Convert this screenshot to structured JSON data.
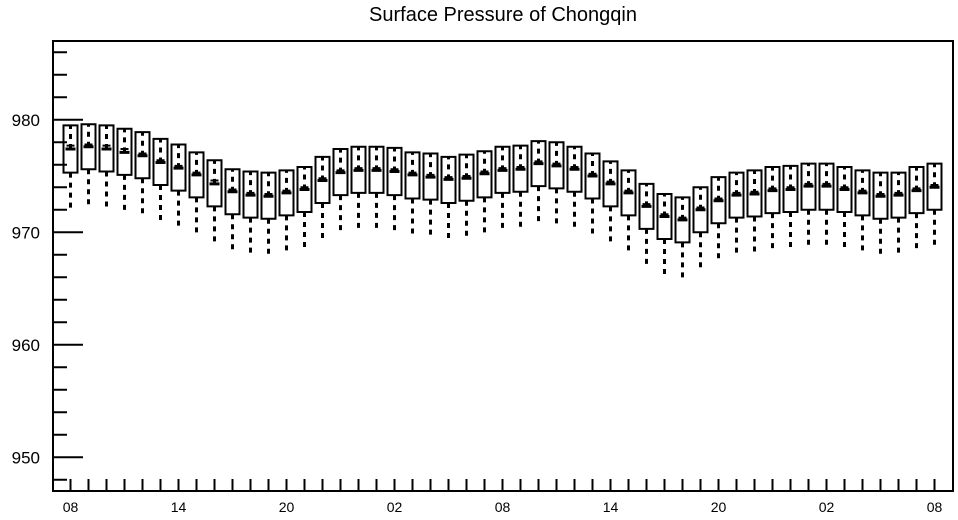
{
  "chart_data": {
    "type": "box",
    "title": "Surface Pressure of Chongqin",
    "xlabel": "",
    "ylabel": "",
    "ylim": [
      947,
      987
    ],
    "y_ticks": [
      950,
      960,
      970,
      980
    ],
    "x_ticks": [
      "08",
      "14",
      "20",
      "02",
      "08",
      "14",
      "20",
      "02",
      "08"
    ],
    "x_tick_positions": [
      0,
      6,
      12,
      18,
      24,
      30,
      36,
      42,
      48
    ],
    "grid": false,
    "boxes": [
      {
        "x": 0,
        "q1": 975.3,
        "median": 977.4,
        "q3": 979.5,
        "mean": 977.7,
        "whisker_low": 972.0
      },
      {
        "x": 1,
        "q1": 975.6,
        "median": 977.6,
        "q3": 979.6,
        "mean": 977.8,
        "whisker_low": 972.2
      },
      {
        "x": 2,
        "q1": 975.4,
        "median": 977.4,
        "q3": 979.5,
        "mean": 977.7,
        "whisker_low": 972.1
      },
      {
        "x": 3,
        "q1": 975.1,
        "median": 977.1,
        "q3": 979.2,
        "mean": 977.4,
        "whisker_low": 971.9
      },
      {
        "x": 4,
        "q1": 974.8,
        "median": 976.8,
        "q3": 978.9,
        "mean": 977.0,
        "whisker_low": 971.5
      },
      {
        "x": 5,
        "q1": 974.2,
        "median": 976.2,
        "q3": 978.3,
        "mean": 976.4,
        "whisker_low": 971.0
      },
      {
        "x": 6,
        "q1": 973.7,
        "median": 975.7,
        "q3": 977.8,
        "mean": 975.9,
        "whisker_low": 970.4
      },
      {
        "x": 7,
        "q1": 973.1,
        "median": 975.1,
        "q3": 977.1,
        "mean": 975.3,
        "whisker_low": 969.8
      },
      {
        "x": 8,
        "q1": 972.3,
        "median": 974.3,
        "q3": 976.4,
        "mean": 974.6,
        "whisker_low": 969.1
      },
      {
        "x": 9,
        "q1": 971.6,
        "median": 973.6,
        "q3": 975.6,
        "mean": 973.8,
        "whisker_low": 968.4
      },
      {
        "x": 10,
        "q1": 971.3,
        "median": 973.3,
        "q3": 975.4,
        "mean": 973.5,
        "whisker_low": 968.1
      },
      {
        "x": 11,
        "q1": 971.2,
        "median": 973.2,
        "q3": 975.3,
        "mean": 973.4,
        "whisker_low": 968.0
      },
      {
        "x": 12,
        "q1": 971.5,
        "median": 973.5,
        "q3": 975.5,
        "mean": 973.7,
        "whisker_low": 968.3
      },
      {
        "x": 13,
        "q1": 971.8,
        "median": 973.8,
        "q3": 975.8,
        "mean": 974.0,
        "whisker_low": 968.6
      },
      {
        "x": 14,
        "q1": 972.6,
        "median": 974.6,
        "q3": 976.7,
        "mean": 974.8,
        "whisker_low": 969.4
      },
      {
        "x": 15,
        "q1": 973.3,
        "median": 975.3,
        "q3": 977.4,
        "mean": 975.5,
        "whisker_low": 970.1
      },
      {
        "x": 16,
        "q1": 973.5,
        "median": 975.5,
        "q3": 977.6,
        "mean": 975.7,
        "whisker_low": 970.3
      },
      {
        "x": 17,
        "q1": 973.5,
        "median": 975.5,
        "q3": 977.6,
        "mean": 975.7,
        "whisker_low": 970.3
      },
      {
        "x": 18,
        "q1": 973.3,
        "median": 975.4,
        "q3": 977.5,
        "mean": 975.6,
        "whisker_low": 970.1
      },
      {
        "x": 19,
        "q1": 973.0,
        "median": 975.1,
        "q3": 977.1,
        "mean": 975.3,
        "whisker_low": 969.8
      },
      {
        "x": 20,
        "q1": 972.9,
        "median": 974.9,
        "q3": 977.0,
        "mean": 975.1,
        "whisker_low": 969.6
      },
      {
        "x": 21,
        "q1": 972.6,
        "median": 974.7,
        "q3": 976.7,
        "mean": 974.9,
        "whisker_low": 969.4
      },
      {
        "x": 22,
        "q1": 972.8,
        "median": 974.8,
        "q3": 976.9,
        "mean": 975.0,
        "whisker_low": 969.5
      },
      {
        "x": 23,
        "q1": 973.1,
        "median": 975.2,
        "q3": 977.2,
        "mean": 975.4,
        "whisker_low": 969.9
      },
      {
        "x": 24,
        "q1": 973.5,
        "median": 975.5,
        "q3": 977.6,
        "mean": 975.7,
        "whisker_low": 970.3
      },
      {
        "x": 25,
        "q1": 973.6,
        "median": 975.6,
        "q3": 977.7,
        "mean": 975.8,
        "whisker_low": 970.4
      },
      {
        "x": 26,
        "q1": 974.1,
        "median": 976.1,
        "q3": 978.1,
        "mean": 976.3,
        "whisker_low": 970.8
      },
      {
        "x": 27,
        "q1": 973.9,
        "median": 975.9,
        "q3": 978.0,
        "mean": 976.1,
        "whisker_low": 970.6
      },
      {
        "x": 28,
        "q1": 973.6,
        "median": 975.6,
        "q3": 977.6,
        "mean": 975.8,
        "whisker_low": 970.3
      },
      {
        "x": 29,
        "q1": 973.0,
        "median": 975.0,
        "q3": 977.0,
        "mean": 975.2,
        "whisker_low": 969.7
      },
      {
        "x": 30,
        "q1": 972.3,
        "median": 974.3,
        "q3": 976.3,
        "mean": 974.5,
        "whisker_low": 969.0
      },
      {
        "x": 31,
        "q1": 971.5,
        "median": 973.5,
        "q3": 975.5,
        "mean": 973.7,
        "whisker_low": 968.2
      },
      {
        "x": 32,
        "q1": 970.3,
        "median": 972.3,
        "q3": 974.3,
        "mean": 972.5,
        "whisker_low": 967.0
      },
      {
        "x": 33,
        "q1": 969.4,
        "median": 971.4,
        "q3": 973.4,
        "mean": 971.6,
        "whisker_low": 966.1
      },
      {
        "x": 34,
        "q1": 969.1,
        "median": 971.1,
        "q3": 973.1,
        "mean": 971.3,
        "whisker_low": 965.8
      },
      {
        "x": 35,
        "q1": 970.0,
        "median": 972.0,
        "q3": 974.0,
        "mean": 972.2,
        "whisker_low": 966.7
      },
      {
        "x": 36,
        "q1": 970.8,
        "median": 972.8,
        "q3": 974.9,
        "mean": 973.0,
        "whisker_low": 967.6
      },
      {
        "x": 37,
        "q1": 971.3,
        "median": 973.3,
        "q3": 975.3,
        "mean": 973.5,
        "whisker_low": 968.0
      },
      {
        "x": 38,
        "q1": 971.4,
        "median": 973.4,
        "q3": 975.5,
        "mean": 973.6,
        "whisker_low": 968.2
      },
      {
        "x": 39,
        "q1": 971.7,
        "median": 973.7,
        "q3": 975.8,
        "mean": 973.9,
        "whisker_low": 968.5
      },
      {
        "x": 40,
        "q1": 971.8,
        "median": 973.8,
        "q3": 975.9,
        "mean": 974.0,
        "whisker_low": 968.6
      },
      {
        "x": 41,
        "q1": 972.0,
        "median": 974.1,
        "q3": 976.1,
        "mean": 974.3,
        "whisker_low": 968.8
      },
      {
        "x": 42,
        "q1": 972.0,
        "median": 974.1,
        "q3": 976.1,
        "mean": 974.3,
        "whisker_low": 968.8
      },
      {
        "x": 43,
        "q1": 971.8,
        "median": 973.8,
        "q3": 975.8,
        "mean": 974.0,
        "whisker_low": 968.5
      },
      {
        "x": 44,
        "q1": 971.5,
        "median": 973.5,
        "q3": 975.5,
        "mean": 973.7,
        "whisker_low": 968.2
      },
      {
        "x": 45,
        "q1": 971.2,
        "median": 973.2,
        "q3": 975.3,
        "mean": 973.4,
        "whisker_low": 967.9
      },
      {
        "x": 46,
        "q1": 971.3,
        "median": 973.3,
        "q3": 975.3,
        "mean": 973.5,
        "whisker_low": 968.0
      },
      {
        "x": 47,
        "q1": 971.7,
        "median": 973.7,
        "q3": 975.8,
        "mean": 973.9,
        "whisker_low": 968.5
      },
      {
        "x": 48,
        "q1": 972.0,
        "median": 974.0,
        "q3": 976.1,
        "mean": 974.2,
        "whisker_low": 968.8
      }
    ]
  }
}
